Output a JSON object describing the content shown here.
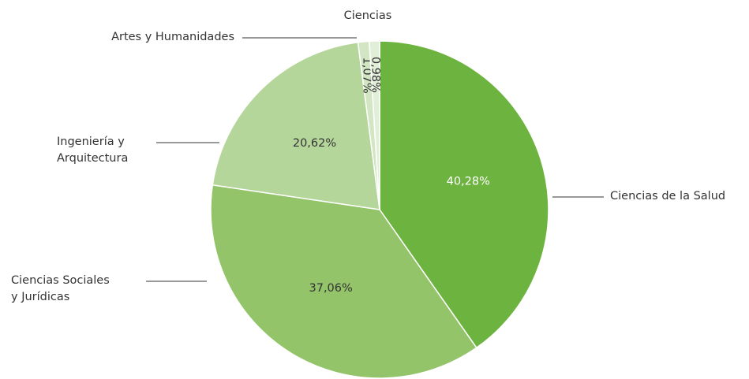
{
  "chart_data": {
    "type": "pie",
    "categories": [
      "Ciencias de la Salud",
      "Ciencias Sociales y Jurídicas",
      "Ingeniería y Arquitectura",
      "Artes y Humanidades",
      "Ciencias"
    ],
    "values": [
      40.28,
      37.06,
      20.62,
      1.07,
      0.98
    ],
    "value_labels": [
      "40,28%",
      "37,06%",
      "20,62%",
      "1,07%",
      "0,98%"
    ],
    "colors": [
      "#6db33f",
      "#93c46a",
      "#b5d69a",
      "#d3e6c3",
      "#e2efd8"
    ]
  }
}
